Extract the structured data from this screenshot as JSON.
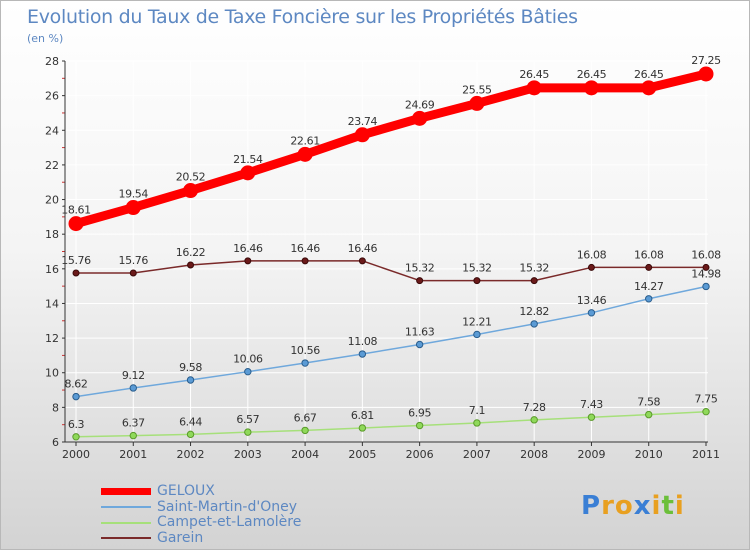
{
  "header": {
    "title": "Evolution du Taux de Taxe Foncière sur les Propriétés Bâties",
    "unit": "(en %)"
  },
  "chart_data": {
    "type": "line",
    "title": "Evolution du Taux de Taxe Foncière sur les Propriétés Bâties",
    "ylabel": "(en %)",
    "xlabel": "",
    "x": [
      2000,
      2001,
      2002,
      2003,
      2004,
      2005,
      2006,
      2007,
      2008,
      2009,
      2010,
      2011
    ],
    "x_labels": [
      "2000",
      "2001",
      "2002",
      "2003",
      "2004",
      "2005",
      "2006",
      "2007",
      "2008",
      "2009",
      "2010",
      "2011"
    ],
    "ylim": [
      6,
      28
    ],
    "yticks": [
      6,
      8,
      10,
      12,
      14,
      16,
      18,
      20,
      22,
      24,
      26,
      28
    ],
    "grid": true,
    "legend_position": "bottom-left",
    "series": [
      {
        "name": "GELOUX",
        "color": "#ff0000",
        "values": [
          18.61,
          19.54,
          20.52,
          21.54,
          22.61,
          23.74,
          24.69,
          25.55,
          26.45,
          26.45,
          26.45,
          27.25
        ],
        "labels": [
          "18.61",
          "19.54",
          "20.52",
          "21.54",
          "22.61",
          "23.74",
          "24.69",
          "25.55",
          "26.45",
          "26.45",
          "26.45",
          "27.25"
        ]
      },
      {
        "name": "Saint-Martin-d'Oney",
        "color": "#6fa8dc",
        "values": [
          8.62,
          9.12,
          9.58,
          10.06,
          10.56,
          11.08,
          11.63,
          12.21,
          12.82,
          13.46,
          14.27,
          14.98
        ],
        "labels": [
          "8.62",
          "9.12",
          "9.58",
          "10.06",
          "10.56",
          "11.08",
          "11.63",
          "12.21",
          "12.82",
          "13.46",
          "14.27",
          "14.98"
        ]
      },
      {
        "name": "Campet-et-Lamolère",
        "color": "#a6e07a",
        "values": [
          6.3,
          6.37,
          6.44,
          6.57,
          6.67,
          6.81,
          6.95,
          7.1,
          7.28,
          7.43,
          7.58,
          7.75
        ],
        "labels": [
          "6.3",
          "6.37",
          "6.44",
          "6.57",
          "6.67",
          "6.81",
          "6.95",
          "7.1",
          "7.28",
          "7.43",
          "7.58",
          "7.75"
        ]
      },
      {
        "name": "Garein",
        "color": "#7a2a2a",
        "values": [
          15.76,
          15.76,
          16.22,
          16.46,
          16.46,
          16.46,
          15.32,
          15.32,
          15.32,
          16.08,
          16.08,
          16.08
        ],
        "labels": [
          "15.76",
          "15.76",
          "16.22",
          "16.46",
          "16.46",
          "16.46",
          "15.32",
          "15.32",
          "15.32",
          "16.08",
          "16.08",
          "16.08"
        ]
      }
    ]
  },
  "logo": {
    "letters": [
      "P",
      "r",
      "o",
      "x",
      "i",
      "t",
      "i"
    ],
    "colors": [
      "#3a7fd5",
      "#e8a020",
      "#e8a020",
      "#3a7fd5",
      "#e8a020",
      "#6bbf3a",
      "#e8a020"
    ]
  }
}
